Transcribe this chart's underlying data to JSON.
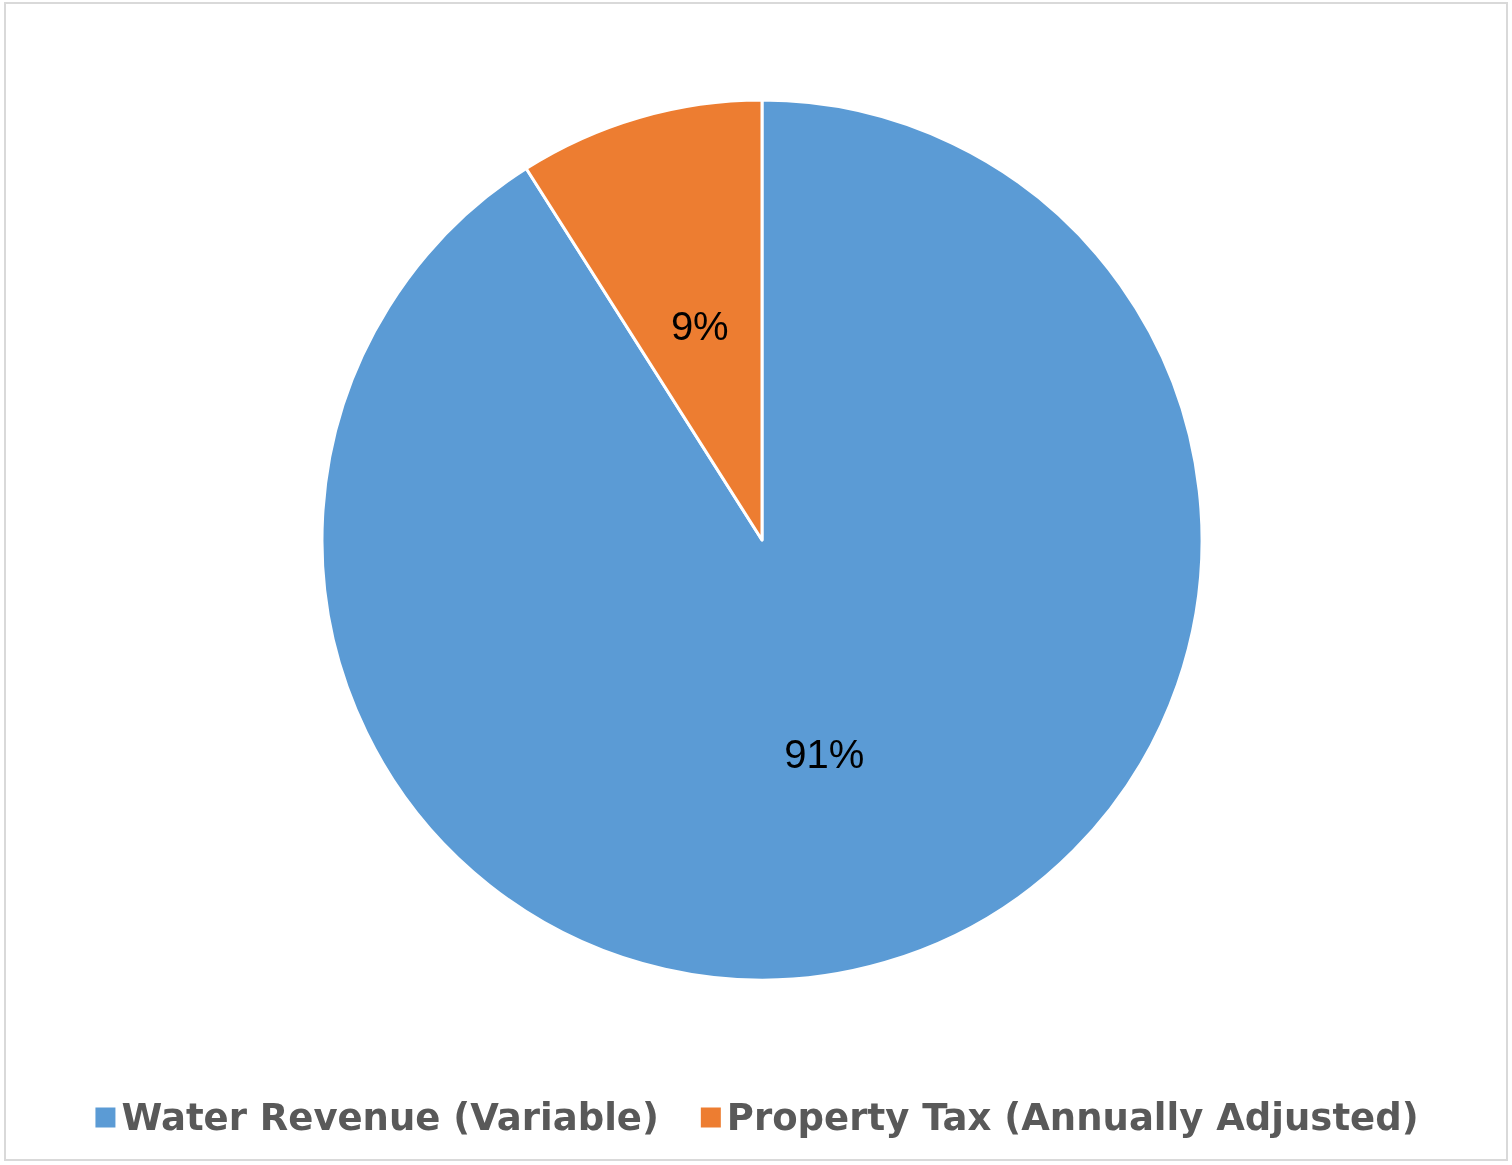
{
  "chart_data": {
    "type": "pie",
    "categories": [
      "Water Revenue (Variable)",
      "Property Tax (Annually Adjusted)"
    ],
    "values": [
      91,
      9
    ],
    "colors": [
      "#5b9bd5",
      "#ed7d31"
    ],
    "value_labels": [
      "91%",
      "9%"
    ],
    "legend": "bottom"
  }
}
